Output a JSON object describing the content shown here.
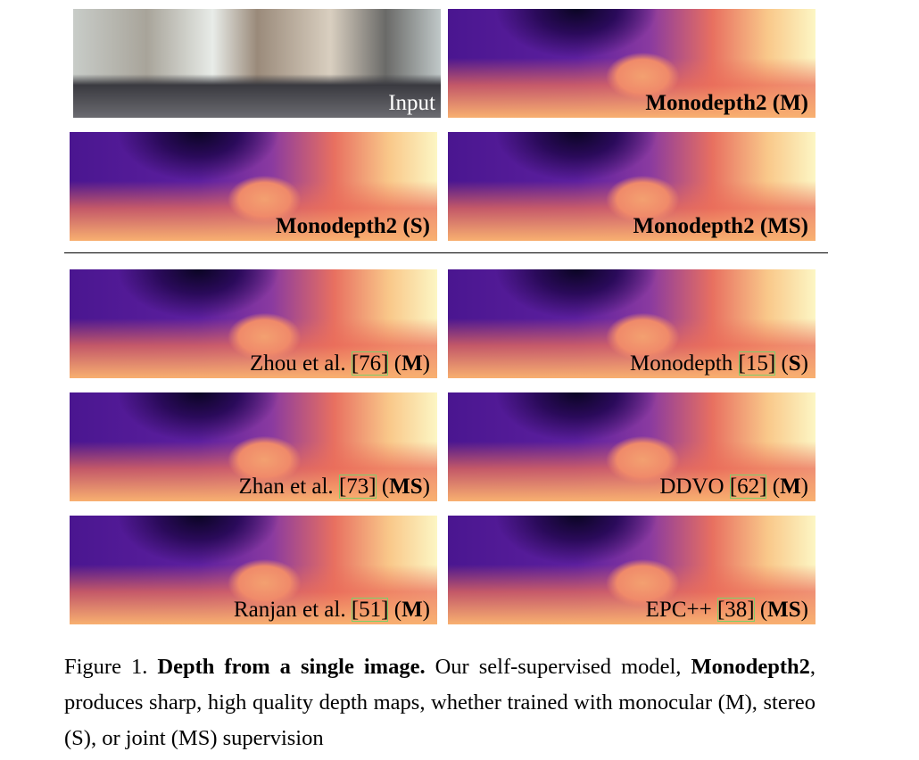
{
  "top_panels": [
    {
      "label": "Input"
    },
    {
      "prefix": "Monodepth2 (",
      "mode": "M",
      "suffix": ")"
    },
    {
      "prefix": "Monodepth2 (",
      "mode": "S",
      "suffix": ")"
    },
    {
      "prefix": "Monodepth2 (",
      "mode": "MS",
      "suffix": ")"
    }
  ],
  "baseline_panels": [
    {
      "name": "Zhou et al. ",
      "cite": "[76]",
      "pre": " (",
      "mode": "M",
      "post": ")"
    },
    {
      "name": "Monodepth ",
      "cite": "[15]",
      "pre": " (",
      "mode": "S",
      "post": ")"
    },
    {
      "name": "Zhan et al. ",
      "cite": "[73]",
      "pre": " (",
      "mode": "MS",
      "post": ")"
    },
    {
      "name": "DDVO ",
      "cite": "[62]",
      "pre": " (",
      "mode": "M",
      "post": ")"
    },
    {
      "name": "Ranjan et al. ",
      "cite": "[51]",
      "pre": " (",
      "mode": "M",
      "post": ")"
    },
    {
      "name": "EPC++ ",
      "cite": "[38]",
      "pre": " (",
      "mode": "MS",
      "post": ")"
    }
  ],
  "caption": {
    "label": "Figure 1. ",
    "title": "Depth from a single image.",
    "text1": " Our self-supervised model, ",
    "bold": "Monodepth2",
    "text2": ", produces sharp, high quality depth maps, whether trained with monocular (M), stereo (S), or joint (MS) supervision"
  }
}
